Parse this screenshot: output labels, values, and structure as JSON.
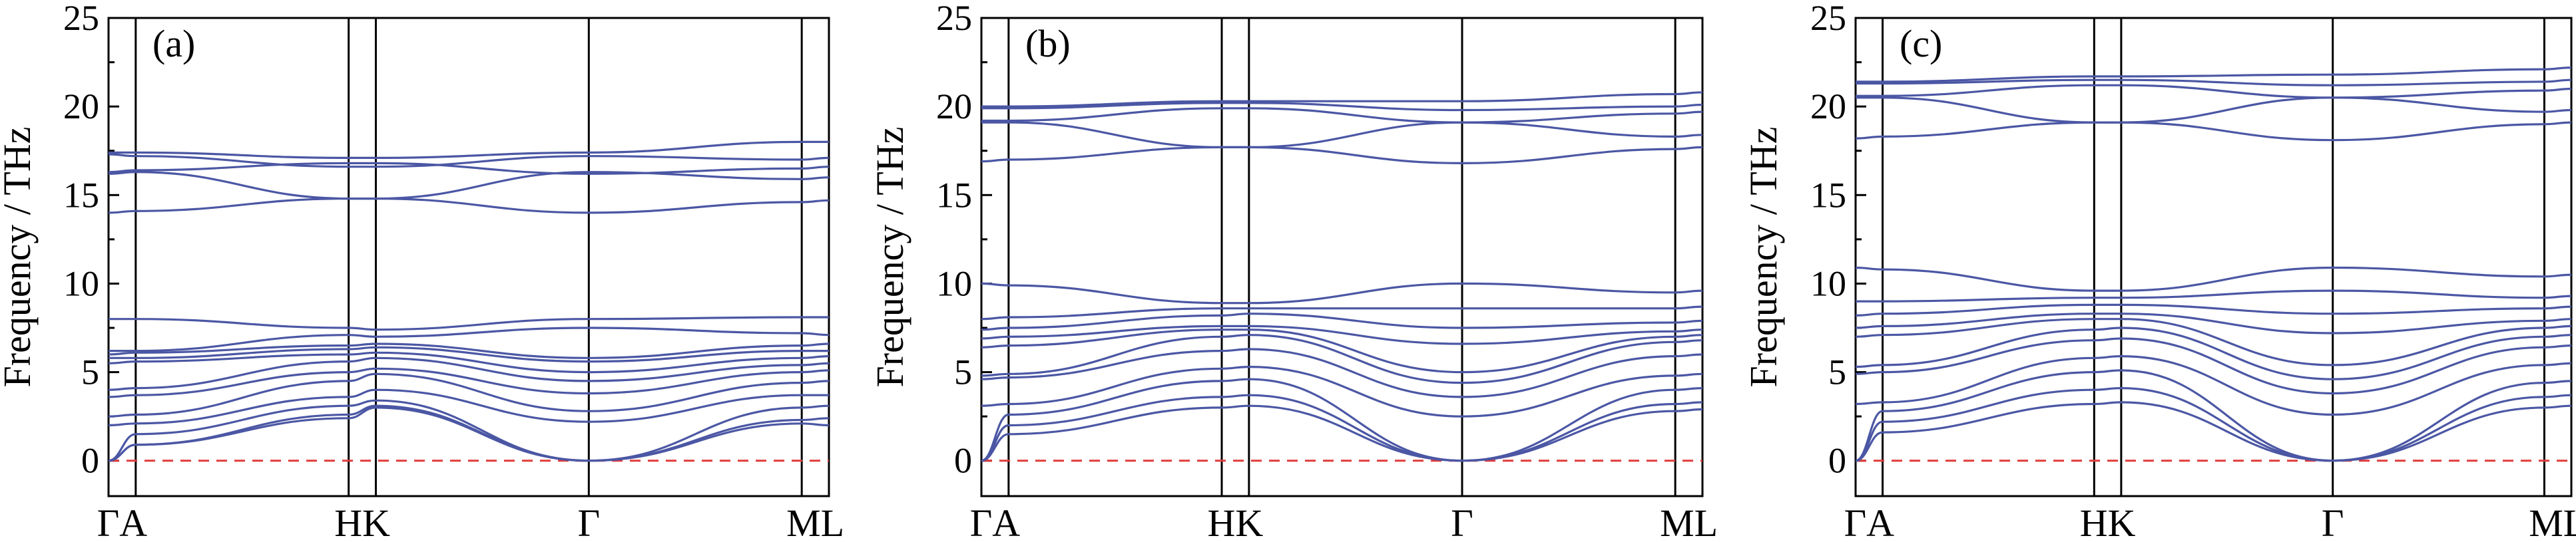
{
  "chart_data": [
    {
      "type": "line",
      "panel_label": "(a)",
      "ylabel": "Frequency / THz",
      "ylim": [
        -2,
        25
      ],
      "yticks": [
        0,
        5,
        10,
        15,
        20,
        25
      ],
      "high_symmetry_points": [
        {
          "label": "Γ",
          "x": 0
        },
        {
          "label": "A",
          "x": 0.06
        },
        {
          "label": "H",
          "x": 0.53
        },
        {
          "label": "K",
          "x": 0.59
        },
        {
          "label": "Γ",
          "x": 1.06
        },
        {
          "label": "M",
          "x": 1.53
        },
        {
          "label": "L",
          "x": 1.59
        }
      ],
      "tick_labels": [
        "ΓA",
        "HK",
        "Γ",
        "ML"
      ],
      "zero_line": 0,
      "line_color": "#4b57a4",
      "zero_line_color": "#e03a3a",
      "bands": [
        [
          0.0,
          0.9,
          2.4,
          3.0,
          0.0,
          2.1,
          2.0
        ],
        [
          0.0,
          0.9,
          2.6,
          3.1,
          0.0,
          2.3,
          2.4
        ],
        [
          0.0,
          1.5,
          3.1,
          3.4,
          0.0,
          3.0,
          3.1
        ],
        [
          2.0,
          2.1,
          3.6,
          4.0,
          2.2,
          3.7,
          3.7
        ],
        [
          2.5,
          2.6,
          4.5,
          4.9,
          2.8,
          4.4,
          4.5
        ],
        [
          3.6,
          3.7,
          5.0,
          5.2,
          3.8,
          5.0,
          5.1
        ],
        [
          4.0,
          4.1,
          5.6,
          5.8,
          4.5,
          5.4,
          5.5
        ],
        [
          5.5,
          5.6,
          6.0,
          6.1,
          5.0,
          5.8,
          5.9
        ],
        [
          5.8,
          5.8,
          6.3,
          6.4,
          5.6,
          6.2,
          6.2
        ],
        [
          6.0,
          6.1,
          6.5,
          6.6,
          5.8,
          6.5,
          6.6
        ],
        [
          6.2,
          6.2,
          7.1,
          7.0,
          7.5,
          7.2,
          7.1
        ],
        [
          8.0,
          8.0,
          7.5,
          7.4,
          8.0,
          8.1,
          8.1
        ],
        [
          14.0,
          14.1,
          14.8,
          14.8,
          14.0,
          14.6,
          14.7
        ],
        [
          16.2,
          16.3,
          14.8,
          14.8,
          16.3,
          15.9,
          16.0
        ],
        [
          16.3,
          16.4,
          16.8,
          16.8,
          16.2,
          16.5,
          16.6
        ],
        [
          17.3,
          17.2,
          16.6,
          16.6,
          17.2,
          17.0,
          17.1
        ],
        [
          17.4,
          17.4,
          17.1,
          17.1,
          17.4,
          18.0,
          18.0
        ]
      ]
    },
    {
      "type": "line",
      "panel_label": "(b)",
      "ylabel": "Frequency / THz",
      "ylim": [
        -2,
        25
      ],
      "yticks": [
        0,
        5,
        10,
        15,
        20,
        25
      ],
      "high_symmetry_points": [
        {
          "label": "Γ",
          "x": 0
        },
        {
          "label": "A",
          "x": 0.06
        },
        {
          "label": "H",
          "x": 0.53
        },
        {
          "label": "K",
          "x": 0.59
        },
        {
          "label": "Γ",
          "x": 1.06
        },
        {
          "label": "M",
          "x": 1.53
        },
        {
          "label": "L",
          "x": 1.59
        }
      ],
      "tick_labels": [
        "ΓA",
        "HK",
        "Γ",
        "ML"
      ],
      "zero_line": 0,
      "line_color": "#4b57a4",
      "zero_line_color": "#e03a3a",
      "bands": [
        [
          0.0,
          1.5,
          3.0,
          3.1,
          0.0,
          2.8,
          2.9
        ],
        [
          0.0,
          2.0,
          3.6,
          3.7,
          0.0,
          3.2,
          3.3
        ],
        [
          0.0,
          2.6,
          4.5,
          4.6,
          0.0,
          4.0,
          4.1
        ],
        [
          3.1,
          3.2,
          5.2,
          5.3,
          2.5,
          4.8,
          4.9
        ],
        [
          4.6,
          4.7,
          6.2,
          6.3,
          3.6,
          5.9,
          6.0
        ],
        [
          4.8,
          4.9,
          7.0,
          7.1,
          4.4,
          6.7,
          6.8
        ],
        [
          6.4,
          6.5,
          7.4,
          7.4,
          5.0,
          7.0,
          7.1
        ],
        [
          6.9,
          7.0,
          7.6,
          7.6,
          6.6,
          7.3,
          7.4
        ],
        [
          7.4,
          7.5,
          8.2,
          8.3,
          7.5,
          7.8,
          7.9
        ],
        [
          8.0,
          8.1,
          8.6,
          8.6,
          8.6,
          8.6,
          8.7
        ],
        [
          10.0,
          9.9,
          8.9,
          8.9,
          10.0,
          9.5,
          9.6
        ],
        [
          16.9,
          17.0,
          17.7,
          17.7,
          16.8,
          17.6,
          17.7
        ],
        [
          19.1,
          19.1,
          17.7,
          17.7,
          19.1,
          18.3,
          18.4
        ],
        [
          19.2,
          19.2,
          19.9,
          19.9,
          19.1,
          19.6,
          19.7
        ],
        [
          19.9,
          19.9,
          20.2,
          20.2,
          19.8,
          20.0,
          20.1
        ],
        [
          20.0,
          20.0,
          20.3,
          20.3,
          20.3,
          20.7,
          20.8
        ]
      ]
    },
    {
      "type": "line",
      "panel_label": "(c)",
      "ylabel": "Frequency / THz",
      "ylim": [
        -2,
        25
      ],
      "yticks": [
        0,
        5,
        10,
        15,
        20,
        25
      ],
      "high_symmetry_points": [
        {
          "label": "Γ",
          "x": 0
        },
        {
          "label": "A",
          "x": 0.06
        },
        {
          "label": "H",
          "x": 0.53
        },
        {
          "label": "K",
          "x": 0.59
        },
        {
          "label": "Γ",
          "x": 1.06
        },
        {
          "label": "M",
          "x": 1.53
        },
        {
          "label": "L",
          "x": 1.59
        }
      ],
      "tick_labels": [
        "ΓA",
        "HK",
        "Γ",
        "ML"
      ],
      "zero_line": 0,
      "line_color": "#4b57a4",
      "zero_line_color": "#e03a3a",
      "bands": [
        [
          0.0,
          1.6,
          3.2,
          3.3,
          0.0,
          3.0,
          3.1
        ],
        [
          0.0,
          2.2,
          4.0,
          4.1,
          0.0,
          3.6,
          3.7
        ],
        [
          0.0,
          2.8,
          5.0,
          5.1,
          0.0,
          4.4,
          4.5
        ],
        [
          3.2,
          3.3,
          5.8,
          5.9,
          2.6,
          5.4,
          5.5
        ],
        [
          4.9,
          5.0,
          6.8,
          6.9,
          3.8,
          6.4,
          6.5
        ],
        [
          5.3,
          5.4,
          7.4,
          7.5,
          4.6,
          7.0,
          7.1
        ],
        [
          7.0,
          7.1,
          8.0,
          8.0,
          5.4,
          7.5,
          7.6
        ],
        [
          7.5,
          7.6,
          8.3,
          8.3,
          7.2,
          7.9,
          8.0
        ],
        [
          8.2,
          8.3,
          8.8,
          8.8,
          8.3,
          8.6,
          8.7
        ],
        [
          9.0,
          9.0,
          9.2,
          9.2,
          9.6,
          9.2,
          9.3
        ],
        [
          10.9,
          10.8,
          9.6,
          9.6,
          10.9,
          10.4,
          10.5
        ],
        [
          18.2,
          18.3,
          19.1,
          19.1,
          18.1,
          19.0,
          19.1
        ],
        [
          20.5,
          20.5,
          19.1,
          19.1,
          20.5,
          19.7,
          19.8
        ],
        [
          20.6,
          20.6,
          21.2,
          21.2,
          20.5,
          20.9,
          21.0
        ],
        [
          21.3,
          21.3,
          21.5,
          21.5,
          21.2,
          21.4,
          21.5
        ],
        [
          21.4,
          21.4,
          21.7,
          21.7,
          21.8,
          22.1,
          22.2
        ]
      ]
    }
  ]
}
